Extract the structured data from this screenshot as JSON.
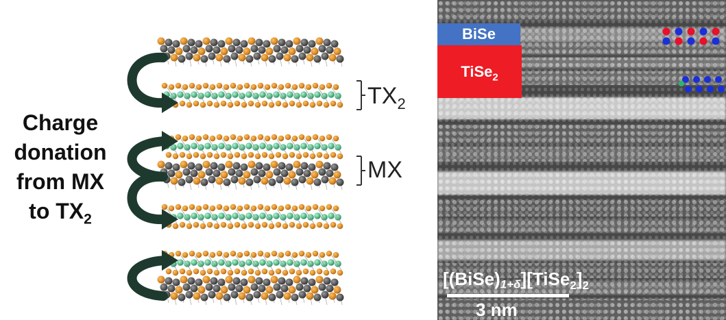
{
  "left": {
    "charge_line1": "Charge",
    "charge_line2": "donation",
    "charge_line3": "from MX",
    "charge_line4_prefix": "to TX",
    "charge_line4_sub": "2",
    "label_tx_main": "TX",
    "label_tx_sub": "2",
    "label_mx": "MX"
  },
  "right": {
    "label_bise": "BiSe",
    "label_tise_main": "TiSe",
    "label_tise_sub": "2",
    "formula_open": "[(BiSe)",
    "formula_index": "1+δ",
    "formula_mid": "][TiSe",
    "formula_sub1": "2",
    "formula_close": "]",
    "formula_sub2": "2",
    "scale_label": "3 nm"
  },
  "colors": {
    "bise_label": "#4472c4",
    "tise_label": "#ee1c25",
    "atom_grey": "#5b5b5b",
    "atom_orange": "#e0902b",
    "atom_green": "#5dbf8e",
    "arrow_green": "#1e3a2e",
    "dot_red": "#e8102a",
    "dot_blue": "#1b2fd8"
  }
}
